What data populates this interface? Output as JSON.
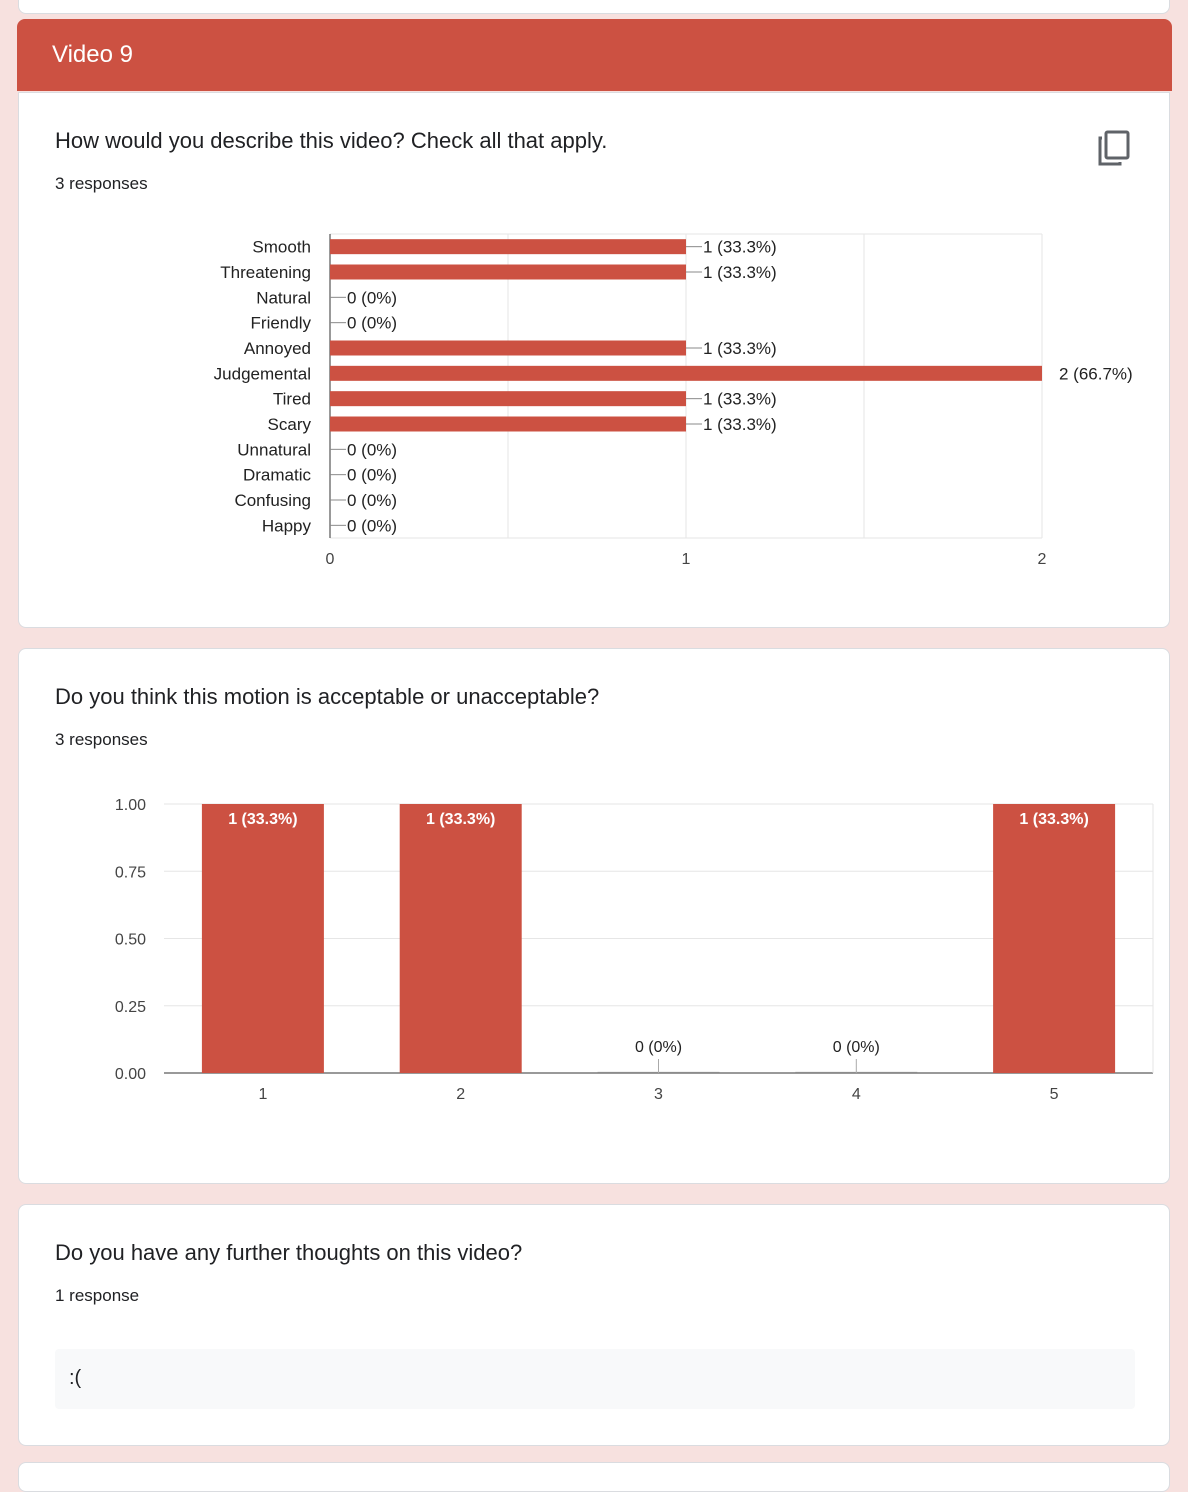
{
  "section": {
    "title": "Video 9"
  },
  "questions": [
    {
      "title": "How would you describe this video? Check all that apply.",
      "responses": "3 responses",
      "copy_icon": "copy-icon"
    },
    {
      "title": "Do you think this motion is acceptable or unacceptable?",
      "responses": "3 responses"
    },
    {
      "title": "Do you have any further thoughts on this video?",
      "responses": "1 response",
      "answers": [
        ":("
      ]
    }
  ],
  "colors": {
    "bar": "#cc5142",
    "header": "#cc5142",
    "background": "#f7e1df"
  },
  "chart_data": [
    {
      "type": "bar",
      "orientation": "horizontal",
      "categories": [
        "Smooth",
        "Threatening",
        "Natural",
        "Friendly",
        "Annoyed",
        "Judgemental",
        "Tired",
        "Scary",
        "Unnatural",
        "Dramatic",
        "Confusing",
        "Happy"
      ],
      "values": [
        1,
        1,
        0,
        0,
        1,
        2,
        1,
        1,
        0,
        0,
        0,
        0
      ],
      "data_labels": [
        "1 (33.3%)",
        "1 (33.3%)",
        "0 (0%)",
        "0 (0%)",
        "1 (33.3%)",
        "2 (66.7%)",
        "1 (33.3%)",
        "1 (33.3%)",
        "0 (0%)",
        "0 (0%)",
        "0 (0%)",
        "0 (0%)"
      ],
      "xlim": [
        0,
        2
      ],
      "xticks": [
        "0",
        "1",
        "2"
      ],
      "grid": true
    },
    {
      "type": "bar",
      "categories": [
        "1",
        "2",
        "3",
        "4",
        "5"
      ],
      "values": [
        1,
        1,
        0,
        0,
        1
      ],
      "data_labels": [
        "1 (33.3%)",
        "1 (33.3%)",
        "0 (0%)",
        "0 (0%)",
        "1 (33.3%)"
      ],
      "ylim": [
        0,
        1
      ],
      "yticks": [
        "0.00",
        "0.25",
        "0.50",
        "0.75",
        "1.00"
      ],
      "grid": true
    }
  ]
}
